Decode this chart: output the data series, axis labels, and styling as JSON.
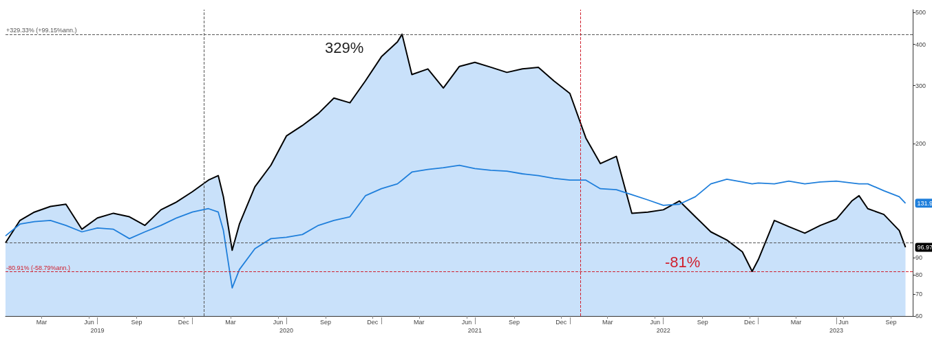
{
  "chart_data": {
    "type": "line",
    "log": "y",
    "grid": false,
    "marker": "none",
    "line_style": "solid",
    "xlim": [
      "2019-01-04",
      "2023-10-27"
    ],
    "xticks": [
      {
        "value": "2019-03-15",
        "label": "Mar"
      },
      {
        "value": "2019-06-15",
        "label": "Jun"
      },
      {
        "value": "2019-09-15",
        "label": "Sep"
      },
      {
        "value": "2019-12-15",
        "label": "Dec"
      },
      {
        "value": "2020-03-15",
        "label": "Mar"
      },
      {
        "value": "2020-06-15",
        "label": "Jun"
      },
      {
        "value": "2020-09-15",
        "label": "Sep"
      },
      {
        "value": "2020-12-15",
        "label": "Dec"
      },
      {
        "value": "2021-03-15",
        "label": "Mar"
      },
      {
        "value": "2021-06-15",
        "label": "Jun"
      },
      {
        "value": "2021-09-15",
        "label": "Sep"
      },
      {
        "value": "2021-12-15",
        "label": "Dec"
      },
      {
        "value": "2022-03-15",
        "label": "Mar"
      },
      {
        "value": "2022-06-15",
        "label": "Jun"
      },
      {
        "value": "2022-09-15",
        "label": "Sep"
      },
      {
        "value": "2022-12-15",
        "label": "Dec"
      },
      {
        "value": "2023-03-15",
        "label": "Mar"
      },
      {
        "value": "2023-06-15",
        "label": "Jun"
      },
      {
        "value": "2023-09-15",
        "label": "Sep"
      }
    ],
    "x2lim": [
      "2019-01-04",
      "2023-10-27"
    ],
    "x2ticks": [
      {
        "value": "2019-07-01",
        "label": "2019"
      },
      {
        "value": "2020-01-01",
        "label": null
      },
      {
        "value": "2020-07-01",
        "label": "2020"
      },
      {
        "value": "2021-01-01",
        "label": null
      },
      {
        "value": "2021-07-01",
        "label": "2021"
      },
      {
        "value": "2022-01-01",
        "label": null
      },
      {
        "value": "2022-07-01",
        "label": "2022"
      },
      {
        "value": "2023-01-01",
        "label": null
      },
      {
        "value": "2023-06-01",
        "label": "2023"
      }
    ],
    "ylim": [
      60,
      510
    ],
    "yticks": [
      60,
      70,
      80,
      90,
      200,
      300,
      400,
      500
    ],
    "x": [
      "2019-01-04",
      "2019-02-01",
      "2019-03-01",
      "2019-04-01",
      "2019-05-01",
      "2019-06-01",
      "2019-07-01",
      "2019-08-01",
      "2019-09-01",
      "2019-10-01",
      "2019-11-01",
      "2019-12-01",
      "2020-01-01",
      "2020-02-01",
      "2020-02-20",
      "2020-03-01",
      "2020-03-18",
      "2020-04-01",
      "2020-05-01",
      "2020-06-01",
      "2020-07-01",
      "2020-08-01",
      "2020-09-01",
      "2020-10-01",
      "2020-11-01",
      "2020-12-01",
      "2021-01-01",
      "2021-02-01",
      "2021-02-10",
      "2021-03-01",
      "2021-04-01",
      "2021-05-01",
      "2021-06-01",
      "2021-07-01",
      "2021-08-01",
      "2021-09-01",
      "2021-10-01",
      "2021-11-01",
      "2021-12-01",
      "2022-01-01",
      "2022-02-01",
      "2022-03-01",
      "2022-04-01",
      "2022-05-01",
      "2022-06-01",
      "2022-07-01",
      "2022-08-01",
      "2022-09-01",
      "2022-10-01",
      "2022-11-01",
      "2022-12-01",
      "2022-12-20",
      "2023-01-01",
      "2023-02-01",
      "2023-03-01",
      "2023-04-01",
      "2023-05-01",
      "2023-06-01",
      "2023-07-01",
      "2023-07-15",
      "2023-08-01",
      "2023-09-01",
      "2023-10-01",
      "2023-10-13"
    ],
    "series": [
      {
        "type": "area",
        "color": "#000000",
        "values": [
          100,
          117,
          124,
          129,
          131,
          110,
          119,
          123,
          120,
          113,
          126,
          133,
          143,
          155,
          160,
          138,
          95,
          114,
          148,
          172,
          211,
          227,
          247,
          275,
          266,
          310,
          367,
          407,
          429.33,
          324,
          337,
          295,
          343,
          353,
          341,
          329,
          337,
          341,
          310,
          284,
          208,
          174,
          183,
          123,
          124,
          126,
          134,
          120,
          108,
          102,
          94,
          81.96,
          89,
          117,
          112,
          107,
          113,
          118,
          134,
          139,
          127,
          122,
          109,
          96.97
        ],
        "value_labels": [
          null,
          null,
          null,
          null,
          null,
          null,
          null,
          null,
          null,
          null,
          null,
          null,
          null,
          null,
          null,
          null,
          null,
          null,
          null,
          null,
          null,
          null,
          null,
          null,
          null,
          null,
          null,
          null,
          null,
          null,
          null,
          null,
          null,
          null,
          null,
          null,
          null,
          null,
          null,
          null,
          null,
          null,
          null,
          null,
          null,
          null,
          null,
          null,
          null,
          null,
          null,
          null,
          null,
          null,
          null,
          null,
          null,
          null,
          null,
          null,
          null,
          null,
          null,
          "96.97"
        ]
      },
      {
        "color": "#1f7fdb",
        "values": [
          105,
          114,
          116,
          117,
          113,
          108,
          111,
          110,
          103,
          108,
          113,
          119,
          124,
          127,
          124,
          109,
          73,
          83,
          96,
          103,
          104,
          106,
          113,
          117,
          120,
          139,
          146,
          151,
          155,
          164,
          167,
          169,
          172,
          168,
          166,
          165,
          162,
          160,
          157,
          155,
          155,
          146,
          145,
          140,
          135,
          130,
          131,
          138,
          151,
          156,
          153,
          151,
          152,
          151,
          154,
          151,
          153,
          154,
          152,
          151,
          151,
          144,
          138,
          131.9
        ],
        "value_labels": [
          null,
          null,
          null,
          null,
          null,
          null,
          null,
          null,
          null,
          null,
          null,
          null,
          null,
          null,
          null,
          null,
          null,
          null,
          null,
          null,
          null,
          null,
          null,
          null,
          null,
          null,
          null,
          null,
          null,
          null,
          null,
          null,
          null,
          null,
          null,
          null,
          null,
          null,
          null,
          null,
          null,
          null,
          null,
          null,
          null,
          null,
          null,
          null,
          null,
          null,
          null,
          null,
          null,
          null,
          null,
          null,
          null,
          null,
          null,
          null,
          null,
          null,
          null,
          "131.9"
        ]
      }
    ],
    "ref_lines": [
      {
        "axis": "y",
        "value": 429.33,
        "label": "+329.33% (+99.15%ann.)",
        "color": "#555555",
        "line_style": "dashed"
      },
      {
        "axis": "y",
        "value": 100,
        "color": "#555555",
        "line_style": "dashed"
      },
      {
        "axis": "y",
        "value": 81.96,
        "label": "-80.91% (-58.79%ann.)",
        "color": "#d0202e",
        "line_style": "dashed"
      },
      {
        "axis": "x",
        "value": "2020-01-23",
        "color": "#555555",
        "line_style": "dashed"
      },
      {
        "axis": "x",
        "value": "2022-01-22",
        "color": "#d0202e",
        "line_style": "dashed"
      }
    ],
    "annotations": [
      "329%",
      "-81%"
    ]
  }
}
